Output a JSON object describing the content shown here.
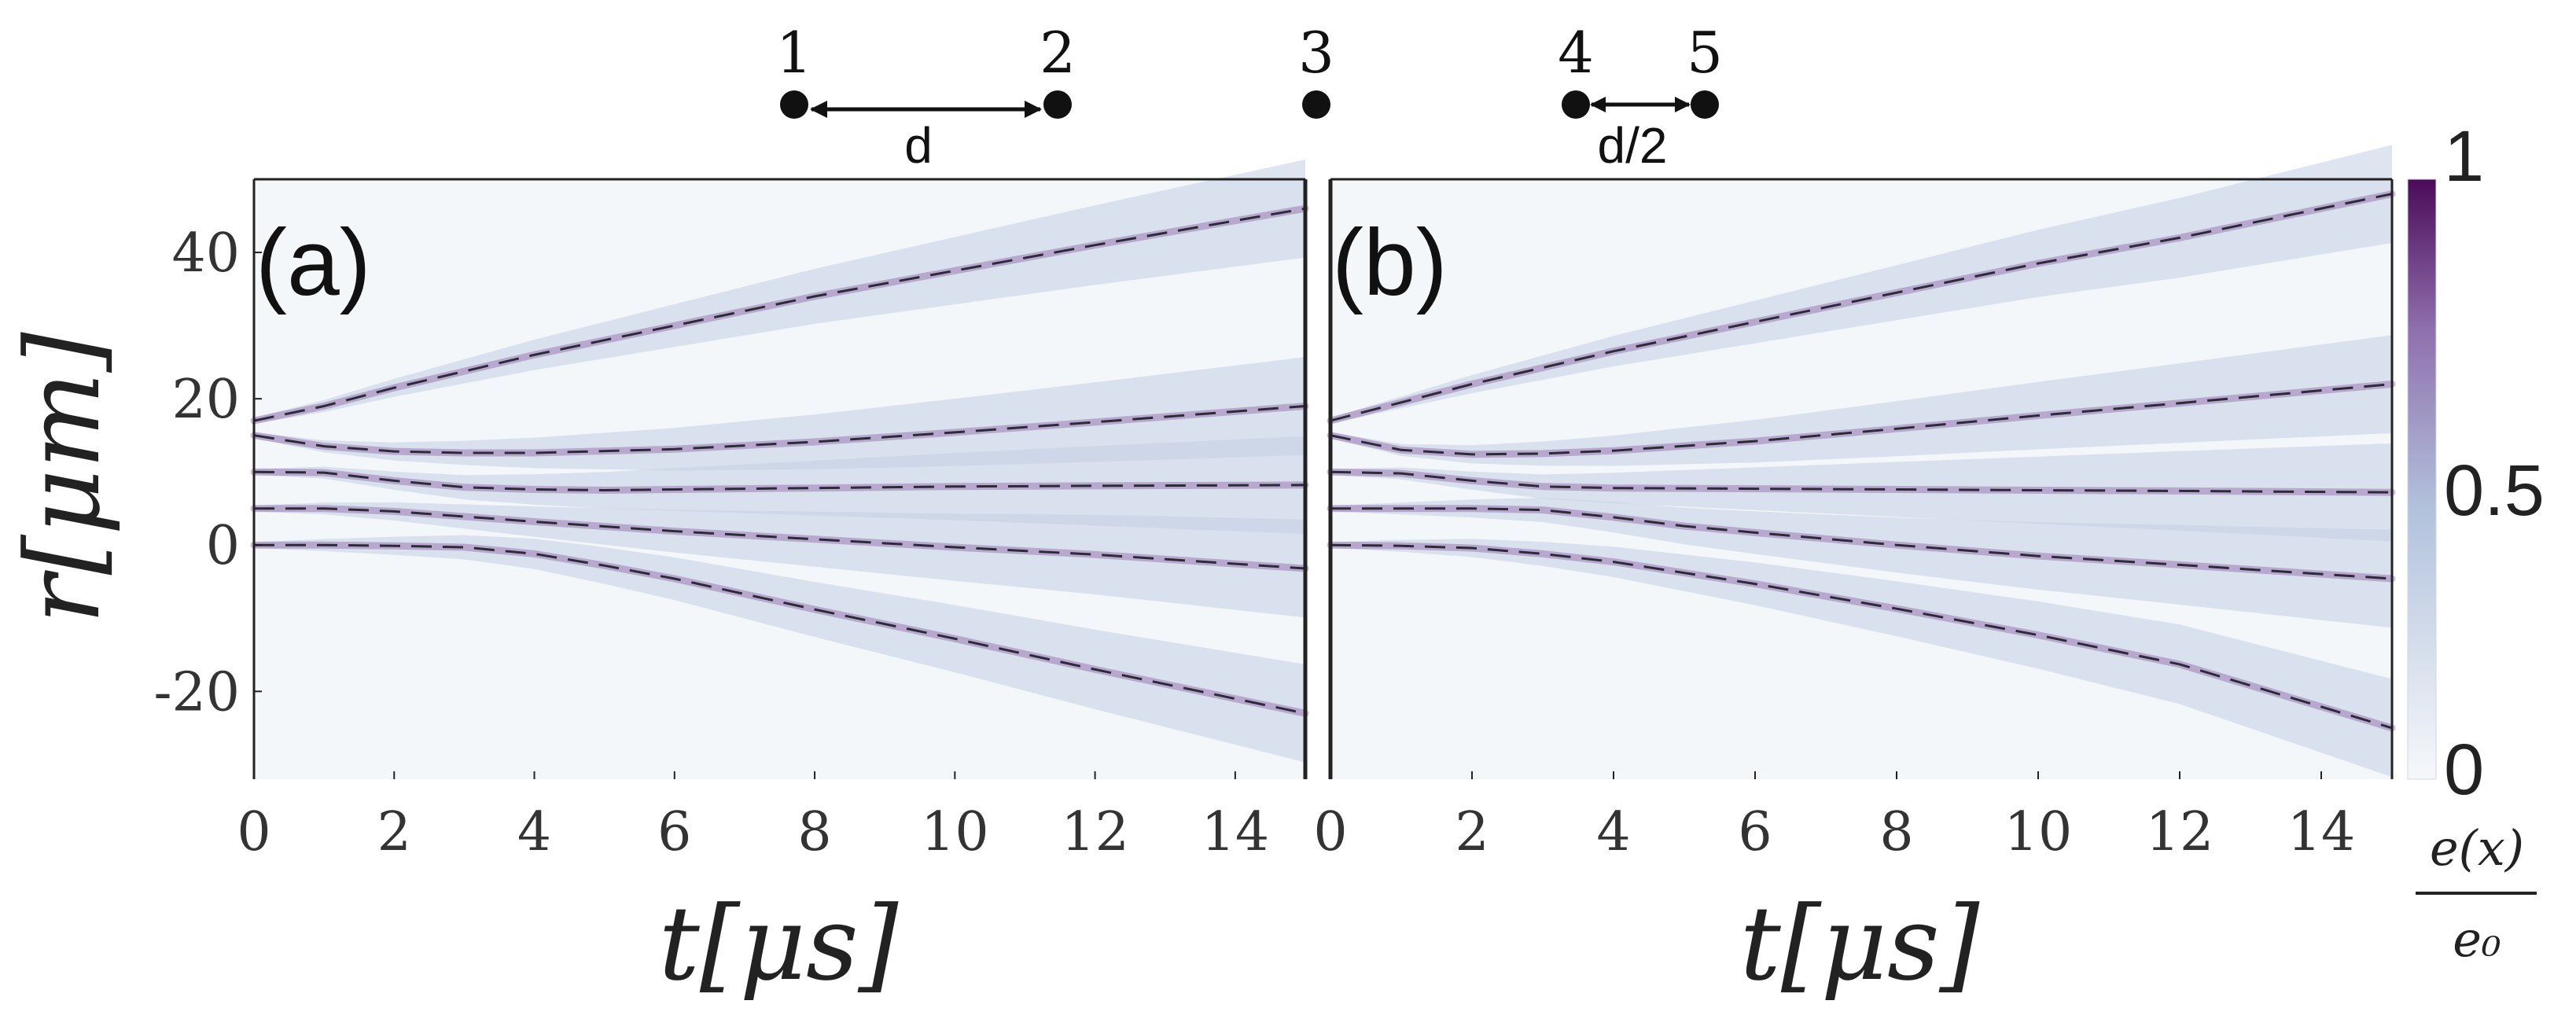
{
  "figure": {
    "atom_diagram": {
      "atom_labels": [
        "1",
        "2",
        "3",
        "4",
        "5"
      ],
      "spacing_labels": [
        "d",
        "d/2"
      ]
    },
    "colorbar": {
      "tick_labels": [
        "1",
        "0.5",
        "0"
      ],
      "label_numerator": "e(x)",
      "label_denominator": "e₀",
      "colors": [
        "#f6f8fb",
        "#b2c2dc",
        "#8f6fae",
        "#4a0b57"
      ]
    },
    "colors": {
      "background": "#f4f7fa",
      "plume": "#c2d0e3",
      "trajectory_core": "#7a3f8f",
      "dashed_line": "#2b2b3a"
    }
  },
  "chart_data": [
    {
      "type": "line",
      "panel_label": "(a)",
      "xlabel": "t[μs]",
      "ylabel": "r[μm]",
      "xlim": [
        0,
        15
      ],
      "ylim": [
        -32,
        50
      ],
      "xticks": [
        "0",
        "2",
        "4",
        "6",
        "8",
        "10",
        "12",
        "14"
      ],
      "yticks": [
        "40",
        "20",
        "0",
        "-20"
      ],
      "series": [
        {
          "x": [
            0,
            1,
            2,
            4,
            6,
            8,
            10,
            12,
            15
          ],
          "y": [
            17,
            19,
            21.5,
            26,
            30,
            34,
            37.5,
            41,
            46
          ]
        },
        {
          "x": [
            0,
            1,
            2,
            3,
            4,
            6,
            8,
            10,
            12,
            15
          ],
          "y": [
            15,
            13.5,
            12.8,
            12.6,
            12.6,
            13.1,
            14.1,
            15.4,
            16.8,
            19
          ]
        },
        {
          "x": [
            0,
            1,
            2,
            3,
            4,
            5,
            6,
            8,
            10,
            12,
            15
          ],
          "y": [
            10,
            9.9,
            8.8,
            7.9,
            7.6,
            7.5,
            7.6,
            7.8,
            8,
            8.1,
            8.2
          ]
        },
        {
          "x": [
            0,
            1,
            2,
            3,
            4,
            6,
            8,
            10,
            12,
            15
          ],
          "y": [
            5,
            5,
            4.6,
            3.9,
            3.2,
            1.9,
            0.8,
            -0.3,
            -1.3,
            -3.2
          ]
        },
        {
          "x": [
            0,
            1,
            2,
            3,
            4,
            5,
            6,
            8,
            10,
            12,
            15
          ],
          "y": [
            0,
            0,
            -0.1,
            -0.3,
            -1.2,
            -2.8,
            -4.6,
            -8.8,
            -12.8,
            -17,
            -23
          ]
        }
      ]
    },
    {
      "type": "line",
      "panel_label": "(b)",
      "xlabel": "t[μs]",
      "ylabel": "",
      "xlim": [
        0,
        15
      ],
      "ylim": [
        -32,
        50
      ],
      "xticks": [
        "0",
        "2",
        "4",
        "6",
        "8",
        "10",
        "12",
        "14"
      ],
      "yticks": [],
      "series": [
        {
          "x": [
            0,
            1,
            2,
            4,
            6,
            8,
            10,
            12,
            15
          ],
          "y": [
            17,
            19.5,
            22,
            26.5,
            30.5,
            34.5,
            38.5,
            42,
            48
          ]
        },
        {
          "x": [
            0,
            1,
            2,
            3,
            4,
            6,
            8,
            10,
            12,
            15
          ],
          "y": [
            15,
            13,
            12.4,
            12.5,
            12.9,
            14.2,
            15.9,
            17.7,
            19.4,
            22
          ]
        },
        {
          "x": [
            0,
            1,
            2,
            3,
            4,
            6,
            8,
            10,
            12,
            15
          ],
          "y": [
            10,
            9.8,
            8.8,
            8,
            7.8,
            7.7,
            7.6,
            7.5,
            7.4,
            7.2
          ]
        },
        {
          "x": [
            0,
            1,
            2,
            3,
            4,
            5,
            6,
            8,
            10,
            12,
            15
          ],
          "y": [
            5,
            5,
            5,
            4.8,
            3.8,
            2.6,
            1.7,
            0,
            -1.5,
            -2.7,
            -4.6
          ]
        },
        {
          "x": [
            0,
            1,
            2,
            3,
            4,
            5,
            6,
            8,
            10,
            12,
            15
          ],
          "y": [
            0,
            -0.1,
            -0.4,
            -1.2,
            -2.3,
            -3.8,
            -5.3,
            -8.7,
            -12.3,
            -16.3,
            -25
          ]
        }
      ]
    }
  ]
}
